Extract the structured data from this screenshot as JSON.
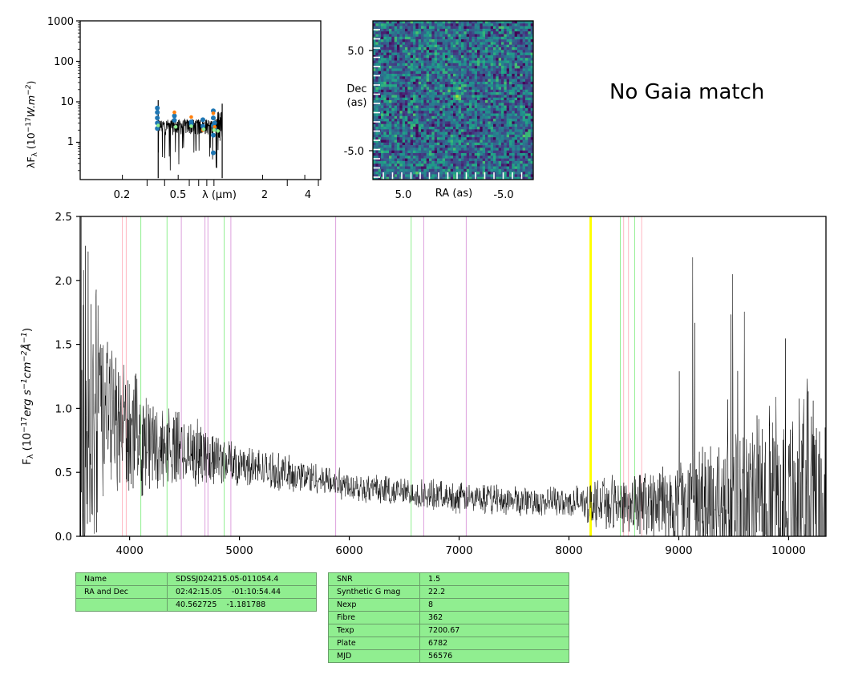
{
  "no_gaia_text": "No Gaia match",
  "colors": {
    "line_green": "#90ee90",
    "line_pink": "#ffb6c1",
    "line_violet": "#dda0dd",
    "line_yellow": "#ffff00",
    "phot_blue": "#1f77b4",
    "phot_orange": "#ff7f0e",
    "phot_green": "#2ca02c",
    "table_green": "#90ee90"
  },
  "table_left": [
    [
      "Name",
      "SDSSJ024215.05-011054.4"
    ],
    [
      "RA and Dec",
      "02:42:15.05    -01:10:54.44"
    ],
    [
      "",
      "40.562725    -1.181788"
    ]
  ],
  "table_right": [
    [
      "SNR",
      "1.5"
    ],
    [
      "Synthetic G mag",
      "22.2"
    ],
    [
      "Nexp",
      "8"
    ],
    [
      "Fibre",
      "362"
    ],
    [
      "Texp",
      "7200.67"
    ],
    [
      "Plate",
      "6782"
    ],
    [
      "MJD",
      "56576"
    ]
  ],
  "chart_data": [
    {
      "type": "scatter",
      "ylabel": "λF_λ (10^-17 W.m^-2)",
      "xlabel": "λ (μm)",
      "xscale": "log",
      "yscale": "log",
      "xlim": [
        0.1,
        5.2
      ],
      "ylim": [
        0.12,
        1000
      ],
      "x_tick_labels": [
        "0.2",
        "0.5",
        "2",
        "4"
      ],
      "y_tick_labels": [
        "1",
        "10",
        "100",
        "1000"
      ],
      "spectrum_range_um": [
        0.36,
        1.03
      ],
      "photometry": [
        {
          "color": "blue",
          "points": [
            [
              0.355,
              2.2
            ],
            [
              0.355,
              3.0
            ],
            [
              0.355,
              4.0
            ],
            [
              0.355,
              5.5
            ],
            [
              0.355,
              7.0
            ],
            [
              0.47,
              3.5
            ],
            [
              0.47,
              4.5
            ],
            [
              0.62,
              3.2
            ],
            [
              0.62,
              2.8
            ],
            [
              0.75,
              3.6
            ],
            [
              0.75,
              2.5
            ],
            [
              0.89,
              6.0
            ],
            [
              0.89,
              4.0
            ],
            [
              0.89,
              2.6
            ],
            [
              0.89,
              1.5
            ],
            [
              0.89,
              0.55
            ],
            [
              0.91,
              2.2
            ],
            [
              0.91,
              3.0
            ]
          ]
        },
        {
          "color": "orange",
          "points": [
            [
              0.47,
              5.5
            ],
            [
              0.62,
              4.2
            ],
            [
              0.75,
              2.0
            ],
            [
              0.89,
              5.2
            ],
            [
              0.91,
              2.4
            ]
          ]
        },
        {
          "color": "green",
          "points": [
            [
              0.36,
              2.6
            ],
            [
              0.48,
              2.4
            ],
            [
              0.62,
              2.5
            ],
            [
              0.76,
              2.1
            ],
            [
              0.9,
              2.0
            ],
            [
              0.96,
              1.9
            ]
          ]
        }
      ]
    },
    {
      "type": "heatmap",
      "xlabel": "RA (as)",
      "ylabel": "Dec\n(as)",
      "x_tick_labels": [
        "5.0",
        "-5.0"
      ],
      "y_tick_labels": [
        "5.0",
        "-5.0"
      ],
      "colormap": "viridis",
      "source_at_center": true
    },
    {
      "type": "line",
      "xlabel": "",
      "ylabel": "F_λ (10^-17 erg s^-1 cm^-2 Å^-1)",
      "xlim": [
        3550,
        10340
      ],
      "ylim": [
        0,
        2.5
      ],
      "x_ticks": [
        4000,
        5000,
        6000,
        7000,
        8000,
        9000,
        10000
      ],
      "x_tick_labels": [
        "4000",
        "5000",
        "6000",
        "7000",
        "8000",
        "9000",
        "10000"
      ],
      "y_ticks": [
        0.0,
        0.5,
        1.0,
        1.5,
        2.0,
        2.5
      ],
      "y_tick_labels": [
        "0.0",
        "0.5",
        "1.0",
        "1.5",
        "2.0",
        "2.5"
      ],
      "continuum": [
        [
          3600,
          0.95
        ],
        [
          3800,
          0.95
        ],
        [
          4000,
          0.82
        ],
        [
          4200,
          0.72
        ],
        [
          4500,
          0.68
        ],
        [
          5000,
          0.56
        ],
        [
          5500,
          0.48
        ],
        [
          6000,
          0.4
        ],
        [
          6500,
          0.34
        ],
        [
          7000,
          0.3
        ],
        [
          7500,
          0.28
        ],
        [
          8000,
          0.26
        ],
        [
          8500,
          0.26
        ],
        [
          9000,
          0.24
        ],
        [
          9500,
          0.25
        ],
        [
          10000,
          0.25
        ],
        [
          10340,
          0.25
        ]
      ],
      "noise_envelope": [
        [
          3550,
          1.4
        ],
        [
          3800,
          0.55
        ],
        [
          4200,
          0.3
        ],
        [
          5000,
          0.14
        ],
        [
          6000,
          0.1
        ],
        [
          7000,
          0.1
        ],
        [
          8000,
          0.1
        ],
        [
          8600,
          0.22
        ],
        [
          9000,
          0.3
        ],
        [
          9500,
          0.55
        ],
        [
          10000,
          0.7
        ],
        [
          10340,
          0.8
        ]
      ],
      "vlines": [
        {
          "x": 3934,
          "color": "pink"
        },
        {
          "x": 3969,
          "color": "pink"
        },
        {
          "x": 4102,
          "color": "green"
        },
        {
          "x": 4341,
          "color": "green"
        },
        {
          "x": 4471,
          "color": "violet"
        },
        {
          "x": 4686,
          "color": "violet"
        },
        {
          "x": 4713,
          "color": "violet"
        },
        {
          "x": 4861,
          "color": "green"
        },
        {
          "x": 4922,
          "color": "violet"
        },
        {
          "x": 5876,
          "color": "violet"
        },
        {
          "x": 6563,
          "color": "green"
        },
        {
          "x": 6678,
          "color": "violet"
        },
        {
          "x": 7065,
          "color": "violet"
        },
        {
          "x": 8198,
          "color": "yellow"
        },
        {
          "x": 8467,
          "color": "green"
        },
        {
          "x": 8498,
          "color": "pink"
        },
        {
          "x": 8542,
          "color": "pink"
        },
        {
          "x": 8598,
          "color": "green"
        },
        {
          "x": 8662,
          "color": "pink"
        }
      ]
    }
  ]
}
